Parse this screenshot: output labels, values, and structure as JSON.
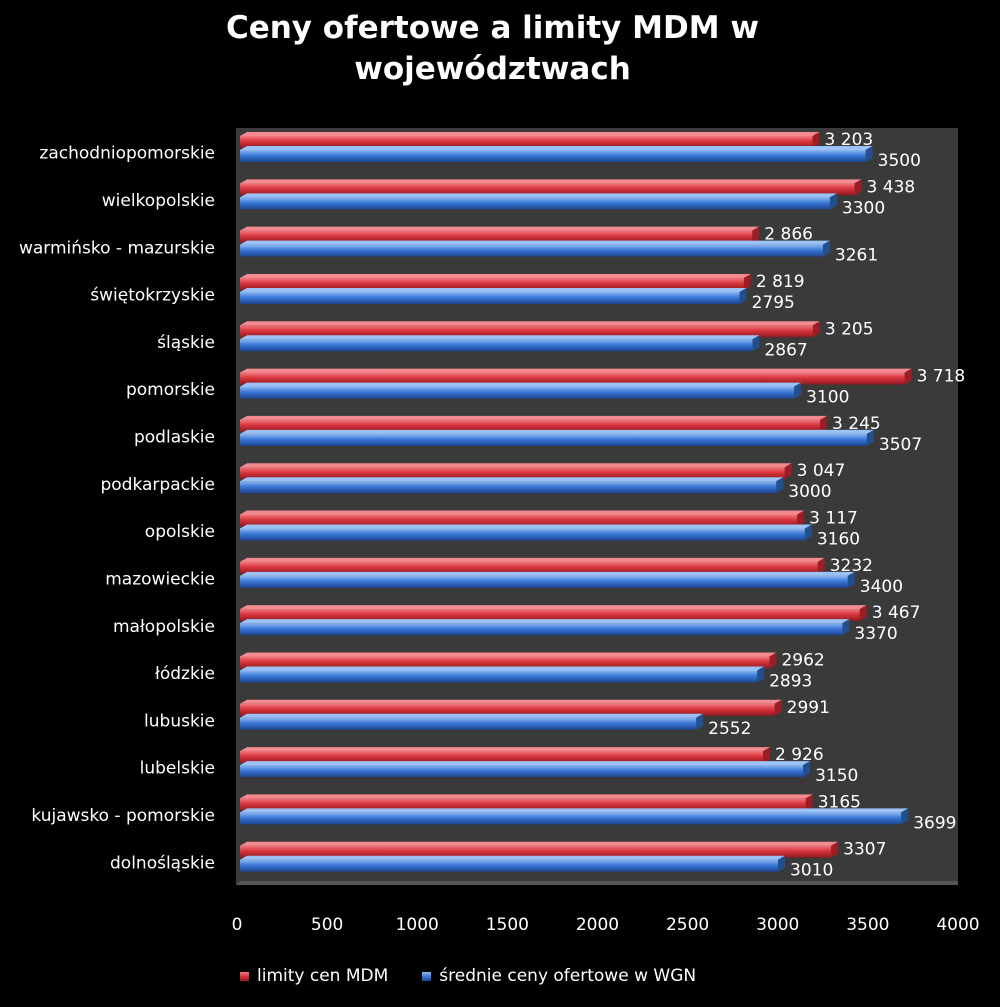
{
  "chart_data": {
    "type": "bar",
    "orientation": "horizontal",
    "title_lines": [
      "Ceny ofertowe a limity MDM w",
      "województwach"
    ],
    "categories": [
      "zachodniopomorskie",
      "wielkopolskie",
      "warmińsko - mazurskie",
      "świętokrzyskie",
      "śląskie",
      "pomorskie",
      "podlaskie",
      "podkarpackie",
      "opolskie",
      "mazowieckie",
      "małopolskie",
      "łódzkie",
      "lubuskie",
      "lubelskie",
      "kujawsko - pomorskie",
      "dolnośląskie"
    ],
    "series": [
      {
        "name": "limity cen MDM",
        "color": "#d9343c",
        "values": [
          3203,
          3438,
          2866,
          2819,
          3205,
          3718,
          3245,
          3047,
          3117,
          3232,
          3467,
          2962,
          2991,
          2926,
          3165,
          3307
        ],
        "labels": [
          "3 203",
          "3 438",
          "2 866",
          "2 819",
          "3 205",
          "3 718",
          "3 245",
          "3 047",
          "3 117",
          "3232",
          "3 467",
          "2962",
          "2991",
          "2 926",
          "3165",
          "3307"
        ]
      },
      {
        "name": "średnie ceny ofertowe w WGN",
        "color": "#3a78d8",
        "values": [
          3500,
          3300,
          3261,
          2795,
          2867,
          3100,
          3507,
          3000,
          3160,
          3400,
          3370,
          2893,
          2552,
          3150,
          3699,
          3010
        ],
        "labels": [
          "3500",
          "3300",
          "3261",
          "2795",
          "2867",
          "3100",
          "3507",
          "3000",
          "3160",
          "3400",
          "3370",
          "2893",
          "2552",
          "3150",
          "3699",
          "3010"
        ]
      }
    ],
    "x_ticks": [
      "0",
      "500",
      "1000",
      "1500",
      "2000",
      "2500",
      "3000",
      "3500",
      "4000"
    ],
    "xlim": [
      0,
      4000
    ],
    "grid": false,
    "legend_position": "bottom",
    "plot_background": "#3a3a3a"
  }
}
